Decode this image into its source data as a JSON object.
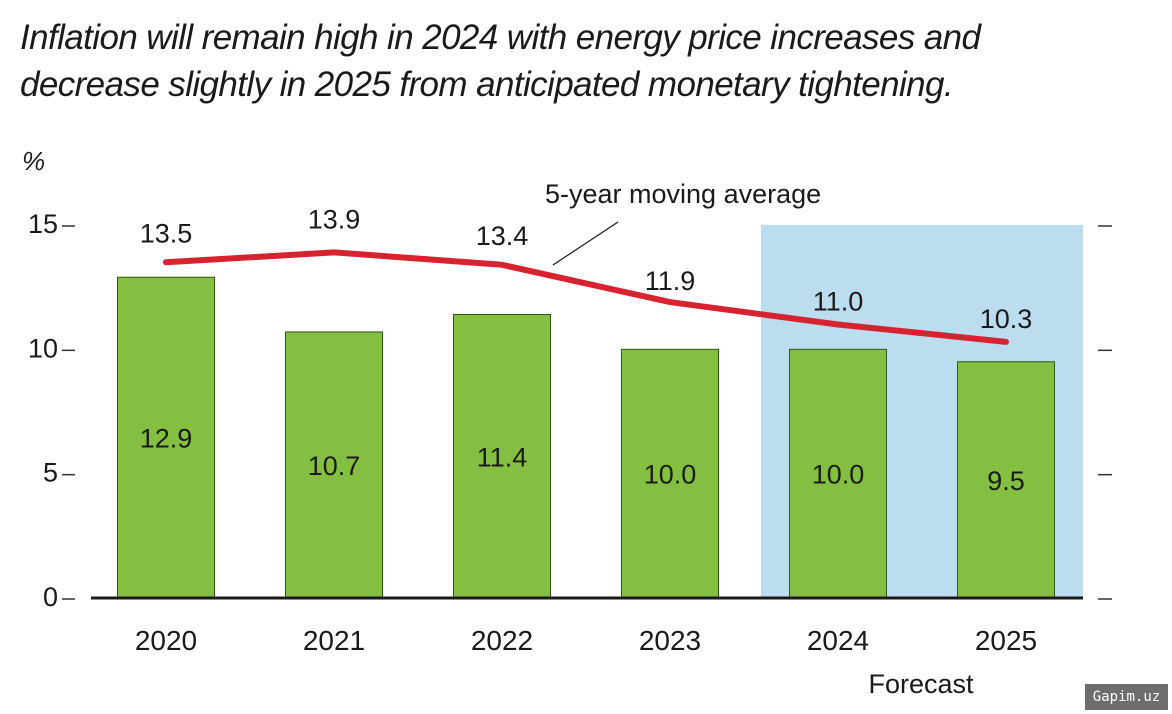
{
  "title_lines": [
    "Inflation will remain high in 2024 with energy price increases and",
    "decrease slightly in 2025 from anticipated monetary tightening."
  ],
  "watermark": "Gapim.uz",
  "chart_data": {
    "type": "bar",
    "title": "Inflation will remain high in 2024 with energy price increases and decrease slightly in 2025 from anticipated monetary tightening.",
    "ylabel": "%",
    "xlabel": "",
    "ylim": [
      0,
      15
    ],
    "yticks": [
      0,
      5,
      10,
      15
    ],
    "grid": false,
    "categories": [
      "2020",
      "2021",
      "2022",
      "2023",
      "2024",
      "2025"
    ],
    "series": [
      {
        "type": "bar",
        "values": [
          12.9,
          10.7,
          11.4,
          10.0,
          10.0,
          9.5
        ],
        "color": "#84bf41"
      },
      {
        "type": "line",
        "name": "5-year moving average",
        "values": [
          13.5,
          13.9,
          13.4,
          11.9,
          11.0,
          10.3
        ],
        "color": "#d7232f"
      }
    ],
    "forecast": {
      "label": "Forecast",
      "categories": [
        "2024",
        "2025"
      ],
      "color": "#bcdcf0"
    },
    "annotation": "5-year moving average"
  }
}
